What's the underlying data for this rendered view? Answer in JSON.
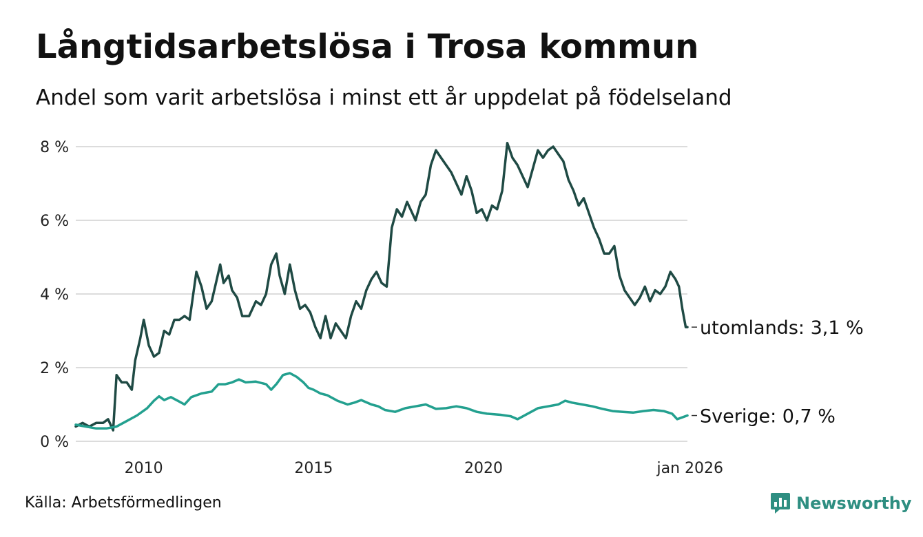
{
  "title": "Långtidsarbetslösa i Trosa kommun",
  "subtitle": "Andel som varit arbetslösa i minst ett år uppdelat på födelseland",
  "source": "Källa: Arbetsförmedlingen",
  "brand": {
    "name": "Newsworthy",
    "icon": "newsworthy-logo-icon",
    "color": "#2e8e81"
  },
  "chart_data": {
    "type": "line",
    "title": "Långtidsarbetslösa i Trosa kommun",
    "xlabel": "",
    "ylabel": "",
    "x_range": [
      2008.0,
      2026.0
    ],
    "ylim": [
      0,
      8
    ],
    "grid": true,
    "y_ticks": [
      {
        "value": 0,
        "label": "0 %"
      },
      {
        "value": 2,
        "label": "2 %"
      },
      {
        "value": 4,
        "label": "4 %"
      },
      {
        "value": 6,
        "label": "6 %"
      },
      {
        "value": 8,
        "label": "8 %"
      }
    ],
    "x_ticks": [
      {
        "value": 2010,
        "label": "2010"
      },
      {
        "value": 2015,
        "label": "2015"
      },
      {
        "value": 2020,
        "label": "2020"
      },
      {
        "value": 2026,
        "label": "jan 2026"
      }
    ],
    "series": [
      {
        "name": "utomlands",
        "label": "utomlands: 3,1 %",
        "color": "#1f4a44",
        "points": [
          [
            2008.0,
            0.4
          ],
          [
            2008.2,
            0.5
          ],
          [
            2008.4,
            0.4
          ],
          [
            2008.6,
            0.5
          ],
          [
            2008.8,
            0.5
          ],
          [
            2008.95,
            0.6
          ],
          [
            2009.1,
            0.3
          ],
          [
            2009.2,
            1.8
          ],
          [
            2009.35,
            1.6
          ],
          [
            2009.5,
            1.6
          ],
          [
            2009.65,
            1.4
          ],
          [
            2009.75,
            2.2
          ],
          [
            2009.9,
            2.8
          ],
          [
            2010.0,
            3.3
          ],
          [
            2010.15,
            2.6
          ],
          [
            2010.3,
            2.3
          ],
          [
            2010.45,
            2.4
          ],
          [
            2010.6,
            3.0
          ],
          [
            2010.75,
            2.9
          ],
          [
            2010.9,
            3.3
          ],
          [
            2011.05,
            3.3
          ],
          [
            2011.2,
            3.4
          ],
          [
            2011.35,
            3.3
          ],
          [
            2011.55,
            4.6
          ],
          [
            2011.7,
            4.2
          ],
          [
            2011.85,
            3.6
          ],
          [
            2012.0,
            3.8
          ],
          [
            2012.1,
            4.2
          ],
          [
            2012.25,
            4.8
          ],
          [
            2012.35,
            4.3
          ],
          [
            2012.5,
            4.5
          ],
          [
            2012.6,
            4.1
          ],
          [
            2012.75,
            3.9
          ],
          [
            2012.9,
            3.4
          ],
          [
            2013.1,
            3.4
          ],
          [
            2013.3,
            3.8
          ],
          [
            2013.45,
            3.7
          ],
          [
            2013.6,
            4.0
          ],
          [
            2013.75,
            4.8
          ],
          [
            2013.9,
            5.1
          ],
          [
            2014.0,
            4.5
          ],
          [
            2014.15,
            4.0
          ],
          [
            2014.3,
            4.8
          ],
          [
            2014.45,
            4.1
          ],
          [
            2014.6,
            3.6
          ],
          [
            2014.75,
            3.7
          ],
          [
            2014.9,
            3.5
          ],
          [
            2015.05,
            3.1
          ],
          [
            2015.2,
            2.8
          ],
          [
            2015.35,
            3.4
          ],
          [
            2015.5,
            2.8
          ],
          [
            2015.65,
            3.2
          ],
          [
            2015.8,
            3.0
          ],
          [
            2015.95,
            2.8
          ],
          [
            2016.1,
            3.4
          ],
          [
            2016.25,
            3.8
          ],
          [
            2016.4,
            3.6
          ],
          [
            2016.55,
            4.1
          ],
          [
            2016.7,
            4.4
          ],
          [
            2016.85,
            4.6
          ],
          [
            2017.0,
            4.3
          ],
          [
            2017.15,
            4.2
          ],
          [
            2017.3,
            5.8
          ],
          [
            2017.45,
            6.3
          ],
          [
            2017.6,
            6.1
          ],
          [
            2017.75,
            6.5
          ],
          [
            2017.9,
            6.2
          ],
          [
            2018.0,
            6.0
          ],
          [
            2018.15,
            6.5
          ],
          [
            2018.3,
            6.7
          ],
          [
            2018.45,
            7.5
          ],
          [
            2018.6,
            7.9
          ],
          [
            2018.75,
            7.7
          ],
          [
            2018.9,
            7.5
          ],
          [
            2019.05,
            7.3
          ],
          [
            2019.2,
            7.0
          ],
          [
            2019.35,
            6.7
          ],
          [
            2019.5,
            7.2
          ],
          [
            2019.65,
            6.8
          ],
          [
            2019.8,
            6.2
          ],
          [
            2019.95,
            6.3
          ],
          [
            2020.1,
            6.0
          ],
          [
            2020.25,
            6.4
          ],
          [
            2020.4,
            6.3
          ],
          [
            2020.55,
            6.8
          ],
          [
            2020.7,
            8.1
          ],
          [
            2020.85,
            7.7
          ],
          [
            2021.0,
            7.5
          ],
          [
            2021.15,
            7.2
          ],
          [
            2021.3,
            6.9
          ],
          [
            2021.45,
            7.4
          ],
          [
            2021.6,
            7.9
          ],
          [
            2021.75,
            7.7
          ],
          [
            2021.9,
            7.9
          ],
          [
            2022.05,
            8.0
          ],
          [
            2022.2,
            7.8
          ],
          [
            2022.35,
            7.6
          ],
          [
            2022.5,
            7.1
          ],
          [
            2022.65,
            6.8
          ],
          [
            2022.8,
            6.4
          ],
          [
            2022.95,
            6.6
          ],
          [
            2023.1,
            6.2
          ],
          [
            2023.25,
            5.8
          ],
          [
            2023.4,
            5.5
          ],
          [
            2023.55,
            5.1
          ],
          [
            2023.7,
            5.1
          ],
          [
            2023.85,
            5.3
          ],
          [
            2024.0,
            4.5
          ],
          [
            2024.15,
            4.1
          ],
          [
            2024.3,
            3.9
          ],
          [
            2024.45,
            3.7
          ],
          [
            2024.6,
            3.9
          ],
          [
            2024.75,
            4.2
          ],
          [
            2024.9,
            3.8
          ],
          [
            2025.05,
            4.1
          ],
          [
            2025.2,
            4.0
          ],
          [
            2025.35,
            4.2
          ],
          [
            2025.5,
            4.6
          ],
          [
            2025.65,
            4.4
          ],
          [
            2025.75,
            4.2
          ],
          [
            2025.85,
            3.6
          ],
          [
            2025.95,
            3.1
          ],
          [
            2026.0,
            3.1
          ]
        ]
      },
      {
        "name": "Sverige",
        "label": "Sverige: 0,7 %",
        "color": "#23a08f",
        "points": [
          [
            2008.0,
            0.45
          ],
          [
            2008.3,
            0.4
          ],
          [
            2008.6,
            0.35
          ],
          [
            2008.9,
            0.35
          ],
          [
            2009.2,
            0.4
          ],
          [
            2009.5,
            0.55
          ],
          [
            2009.8,
            0.7
          ],
          [
            2010.1,
            0.9
          ],
          [
            2010.3,
            1.1
          ],
          [
            2010.45,
            1.22
          ],
          [
            2010.6,
            1.12
          ],
          [
            2010.8,
            1.2
          ],
          [
            2011.0,
            1.1
          ],
          [
            2011.2,
            1.0
          ],
          [
            2011.4,
            1.2
          ],
          [
            2011.7,
            1.3
          ],
          [
            2012.0,
            1.35
          ],
          [
            2012.2,
            1.55
          ],
          [
            2012.4,
            1.55
          ],
          [
            2012.6,
            1.6
          ],
          [
            2012.8,
            1.68
          ],
          [
            2013.0,
            1.6
          ],
          [
            2013.3,
            1.62
          ],
          [
            2013.6,
            1.55
          ],
          [
            2013.75,
            1.4
          ],
          [
            2013.9,
            1.55
          ],
          [
            2014.1,
            1.8
          ],
          [
            2014.3,
            1.85
          ],
          [
            2014.5,
            1.75
          ],
          [
            2014.7,
            1.6
          ],
          [
            2014.85,
            1.45
          ],
          [
            2015.0,
            1.4
          ],
          [
            2015.2,
            1.3
          ],
          [
            2015.4,
            1.25
          ],
          [
            2015.7,
            1.1
          ],
          [
            2016.0,
            1.0
          ],
          [
            2016.2,
            1.05
          ],
          [
            2016.4,
            1.12
          ],
          [
            2016.7,
            1.0
          ],
          [
            2016.9,
            0.95
          ],
          [
            2017.1,
            0.85
          ],
          [
            2017.4,
            0.8
          ],
          [
            2017.7,
            0.9
          ],
          [
            2018.0,
            0.95
          ],
          [
            2018.3,
            1.0
          ],
          [
            2018.6,
            0.88
          ],
          [
            2018.9,
            0.9
          ],
          [
            2019.2,
            0.95
          ],
          [
            2019.5,
            0.9
          ],
          [
            2019.8,
            0.8
          ],
          [
            2020.1,
            0.75
          ],
          [
            2020.5,
            0.72
          ],
          [
            2020.8,
            0.68
          ],
          [
            2021.0,
            0.6
          ],
          [
            2021.3,
            0.75
          ],
          [
            2021.6,
            0.9
          ],
          [
            2021.9,
            0.95
          ],
          [
            2022.2,
            1.0
          ],
          [
            2022.4,
            1.1
          ],
          [
            2022.6,
            1.05
          ],
          [
            2022.9,
            1.0
          ],
          [
            2023.2,
            0.95
          ],
          [
            2023.5,
            0.88
          ],
          [
            2023.8,
            0.82
          ],
          [
            2024.1,
            0.8
          ],
          [
            2024.4,
            0.78
          ],
          [
            2024.7,
            0.82
          ],
          [
            2025.0,
            0.85
          ],
          [
            2025.3,
            0.82
          ],
          [
            2025.55,
            0.75
          ],
          [
            2025.7,
            0.6
          ],
          [
            2025.85,
            0.65
          ],
          [
            2026.0,
            0.7
          ]
        ]
      }
    ]
  }
}
